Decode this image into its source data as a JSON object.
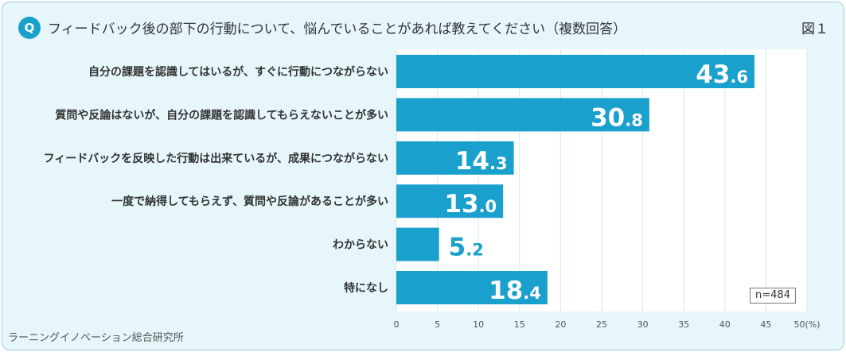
{
  "header": {
    "badge": "Q",
    "title": "フィードバック後の部下の行動について、悩んでいることがあれば教えてください（複数回答）",
    "figure_label": "図１"
  },
  "footer": {
    "source": "ラーニングイノベーション総合研究所"
  },
  "sample_size": "n=484",
  "colors": {
    "bar": "#1aa0cc",
    "background": "#e6f6fb",
    "grid": "#d4e9ef"
  },
  "chart_data": {
    "type": "bar",
    "orientation": "horizontal",
    "categories": [
      "自分の課題を認識してはいるが、すぐに行動につながらない",
      "質問や反論はないが、自分の課題を認識してもらえないことが多い",
      "フィードバックを反映した行動は出来ているが、成果につながらない",
      "一度で納得してもらえず、質問や反論があることが多い",
      "わからない",
      "特になし"
    ],
    "values": [
      43.6,
      30.8,
      14.3,
      13.0,
      5.2,
      18.4
    ],
    "xlim": [
      0,
      50
    ],
    "xticks": [
      "0",
      "5",
      "10",
      "15",
      "20",
      "25",
      "30",
      "35",
      "40",
      "45",
      "50(%)"
    ],
    "grid": true
  }
}
